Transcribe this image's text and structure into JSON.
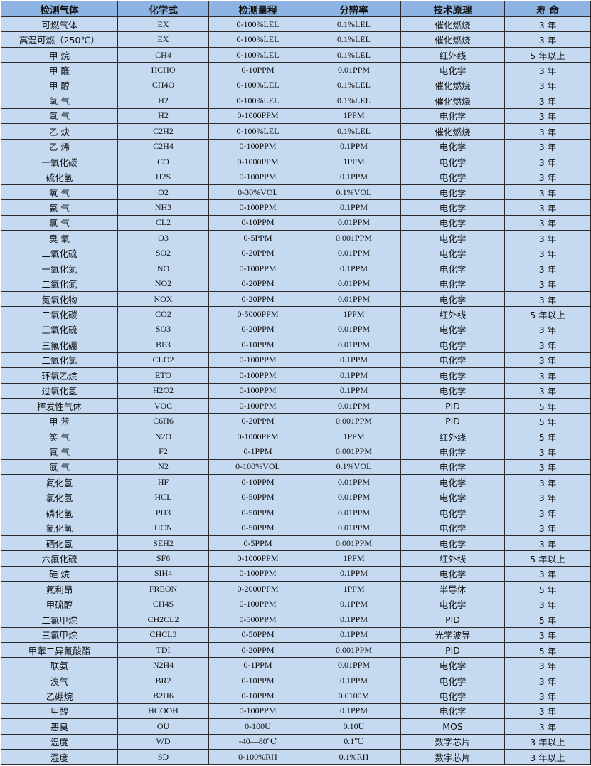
{
  "colors": {
    "header_bg": "#8db4e2",
    "cell_bg": "#c5d9f1",
    "border": "#2b2b2b"
  },
  "headers": [
    "检测气体",
    "化学式",
    "检测量程",
    "分辨率",
    "技术原理",
    "寿 命"
  ],
  "rows": [
    [
      "可燃气体",
      "EX",
      "0-100%LEL",
      "0.1%LEL",
      "催化燃烧",
      "3 年"
    ],
    [
      "高温可燃（250℃）",
      "EX",
      "0-100%LEL",
      "0.1%LEL",
      "催化燃烧",
      "3 年"
    ],
    [
      "甲 烷",
      "CH4",
      "0-100%LEL",
      "0.1%LEL",
      "红外线",
      "5 年以上"
    ],
    [
      "甲 醛",
      "HCHO",
      "0-10PPM",
      "0.01PPM",
      "电化学",
      "3 年"
    ],
    [
      "甲 醇",
      "CH4O",
      "0-100%LEL",
      "0.1%LEL",
      "催化燃烧",
      "3 年"
    ],
    [
      "氢 气",
      "H2",
      "0-100%LEL",
      "0.1%LEL",
      "催化燃烧",
      "3 年"
    ],
    [
      "氢 气",
      "H2",
      "0-1000PPM",
      "1PPM",
      "电化学",
      "3 年"
    ],
    [
      "乙 炔",
      "C2H2",
      "0-100%LEL",
      "0.1%LEL",
      "催化燃烧",
      "3 年"
    ],
    [
      "乙 烯",
      "C2H4",
      "0-100PPM",
      "0.1PPM",
      "电化学",
      "3 年"
    ],
    [
      "一氧化碳",
      "CO",
      "0-1000PPM",
      "1PPM",
      "电化学",
      "3 年"
    ],
    [
      "硫化氢",
      "H2S",
      "0-100PPM",
      "0.1PPM",
      "电化学",
      "3 年"
    ],
    [
      "氧 气",
      "O2",
      "0-30%VOL",
      "0.1%VOL",
      "电化学",
      "3 年"
    ],
    [
      "氨 气",
      "NH3",
      "0-100PPM",
      "0.1PPM",
      "电化学",
      "3 年"
    ],
    [
      "氯 气",
      "CL2",
      "0-10PPM",
      "0.01PPM",
      "电化学",
      "3 年"
    ],
    [
      "臭 氧",
      "O3",
      "0-5PPM",
      "0.001PPM",
      "电化学",
      "3 年"
    ],
    [
      "二氧化硫",
      "SO2",
      "0-20PPM",
      "0.01PPM",
      "电化学",
      "3 年"
    ],
    [
      "一氧化氮",
      "NO",
      "0-100PPM",
      "0.1PPM",
      "电化学",
      "3 年"
    ],
    [
      "二氧化氮",
      "NO2",
      "0-20PPM",
      "0.01PPM",
      "电化学",
      "3 年"
    ],
    [
      "氮氧化物",
      "NOX",
      "0-20PPM",
      "0.01PPM",
      "电化学",
      "3 年"
    ],
    [
      "二氧化碳",
      "CO2",
      "0-5000PPM",
      "1PPM",
      "红外线",
      "5 年以上"
    ],
    [
      "三氧化硫",
      "SO3",
      "0-20PPM",
      "0.01PPM",
      "电化学",
      "3 年"
    ],
    [
      "三氟化硼",
      "BF3",
      "0-10PPM",
      "0.01PPM",
      "电化学",
      "3 年"
    ],
    [
      "二氧化氯",
      "CLO2",
      "0-100PPM",
      "0.1PPM",
      "电化学",
      "3 年"
    ],
    [
      "环氧乙烷",
      "ETO",
      "0-100PPM",
      "0.1PPM",
      "电化学",
      "3 年"
    ],
    [
      "过氧化氢",
      "H2O2",
      "0-100PPM",
      "0.1PPM",
      "电化学",
      "3 年"
    ],
    [
      "挥发性气体",
      "VOC",
      "0-100PPM",
      "0.01PPM",
      "PID",
      "5 年"
    ],
    [
      "甲 苯",
      "C6H6",
      "0-20PPM",
      "0.001PPM",
      "PID",
      "5 年"
    ],
    [
      "笑 气",
      "N2O",
      "0-1000PPM",
      "1PPM",
      "红外线",
      "5 年"
    ],
    [
      "氟 气",
      "F2",
      "0-1PPM",
      "0.001PPM",
      "电化学",
      "3 年"
    ],
    [
      "氮 气",
      "N2",
      "0-100%VOL",
      "0.1%VOL",
      "电化学",
      "3 年"
    ],
    [
      "氟化氢",
      "HF",
      "0-10PPM",
      "0.01PPM",
      "电化学",
      "3 年"
    ],
    [
      "氯化氢",
      "HCL",
      "0-50PPM",
      "0.01PPM",
      "电化学",
      "3 年"
    ],
    [
      "磷化氢",
      "PH3",
      "0-50PPM",
      "0.01PPM",
      "电化学",
      "3 年"
    ],
    [
      "氰化氢",
      "HCN",
      "0-50PPM",
      "0.01PPM",
      "电化学",
      "3 年"
    ],
    [
      "硒化氢",
      "SEH2",
      "0-5PPM",
      "0.001PPM",
      "电化学",
      "3 年"
    ],
    [
      "六氟化硫",
      "SF6",
      "0-1000PPM",
      "1PPM",
      "红外线",
      "5 年以上"
    ],
    [
      "硅 烷",
      "SIH4",
      "0-100PPM",
      "0.1PPM",
      "电化学",
      "3 年"
    ],
    [
      "氟利昂",
      "FREON",
      "0-2000PPM",
      "1PPM",
      "半导体",
      "5 年"
    ],
    [
      "甲硫醇",
      "CH4S",
      "0-100PPM",
      "0.1PPM",
      "电化学",
      "3 年"
    ],
    [
      "二氯甲烷",
      "CH2CL2",
      "0-500PPM",
      "0.1PPM",
      "PID",
      "5 年"
    ],
    [
      "三氯甲烷",
      "CHCL3",
      "0-50PPM",
      "0.1PPM",
      "光学波导",
      "3 年"
    ],
    [
      "甲苯二异氰酸酯",
      "TDI",
      "0-20PPM",
      "0.001PPM",
      "PID",
      "5 年"
    ],
    [
      "联氨",
      "N2H4",
      "0-1PPM",
      "0.01PPM",
      "电化学",
      "3 年"
    ],
    [
      "溴气",
      "BR2",
      "0-10PPM",
      "0.1PPM",
      "电化学",
      "3 年"
    ],
    [
      "乙硼烷",
      "B2H6",
      "0-10PPM",
      "0.0100M",
      "电化学",
      "3 年"
    ],
    [
      "甲酸",
      "HCOOH",
      "0-100PPM",
      "0.1PPM",
      "电化学",
      "3 年"
    ],
    [
      "恶臭",
      "OU",
      "0-100U",
      "0.10U",
      "MOS",
      "3 年"
    ],
    [
      "温度",
      "WD",
      "-40—80℃",
      "0.1℃",
      "数字芯片",
      "3 年以上"
    ],
    [
      "湿度",
      "SD",
      "0-100%RH",
      "0.1%RH",
      "数字芯片",
      "3 年以上"
    ]
  ]
}
